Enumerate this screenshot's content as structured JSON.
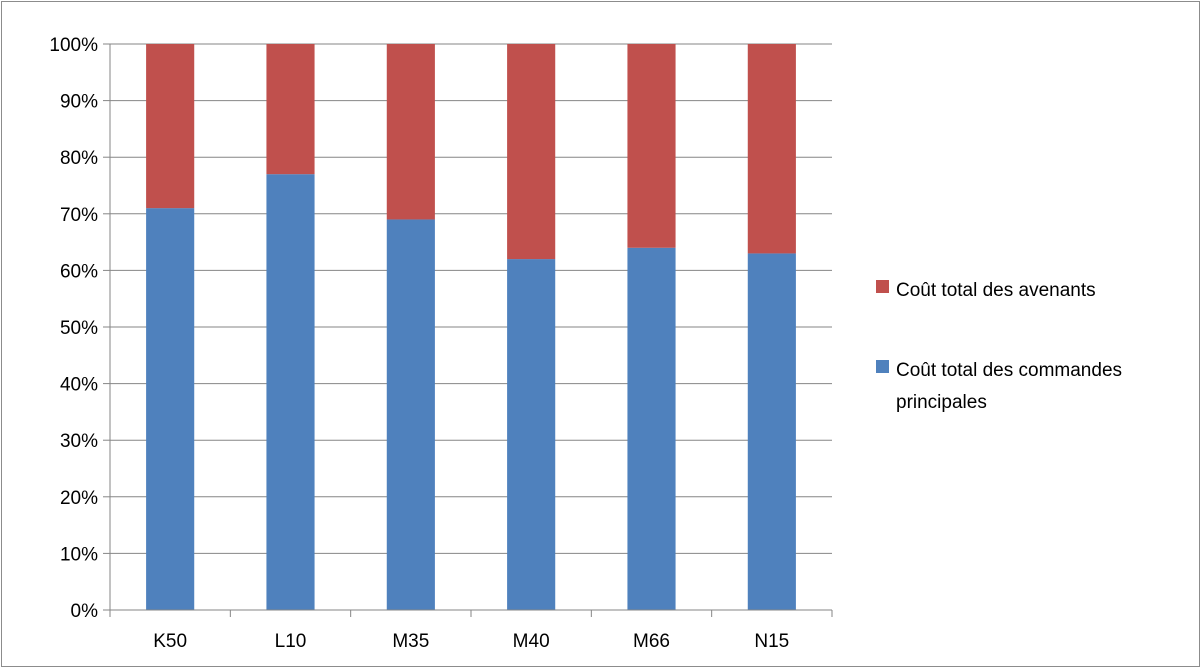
{
  "chart_data": {
    "type": "bar",
    "stacked": true,
    "percent_stacked": true,
    "categories": [
      "K50",
      "L10",
      "M35",
      "M40",
      "M66",
      "N15"
    ],
    "series": [
      {
        "name": "Coût total des commandes principales",
        "color": "#4f81bd",
        "values": [
          71,
          77,
          69,
          62,
          64,
          63
        ]
      },
      {
        "name": "Coût total des avenants",
        "color": "#c0504d",
        "values": [
          29,
          23,
          31,
          38,
          36,
          37
        ]
      }
    ],
    "y_ticks": [
      "0%",
      "10%",
      "20%",
      "30%",
      "40%",
      "50%",
      "60%",
      "70%",
      "80%",
      "90%",
      "100%"
    ],
    "ylim": [
      0,
      100
    ],
    "grid": true,
    "legend": {
      "placement": "right",
      "items": [
        {
          "lines": [
            "Coût total des avenants"
          ],
          "color": "#c0504d"
        },
        {
          "lines": [
            "Coût total des commandes",
            "principales"
          ],
          "color": "#4f81bd"
        }
      ]
    },
    "title": "",
    "xlabel": "",
    "ylabel": ""
  }
}
